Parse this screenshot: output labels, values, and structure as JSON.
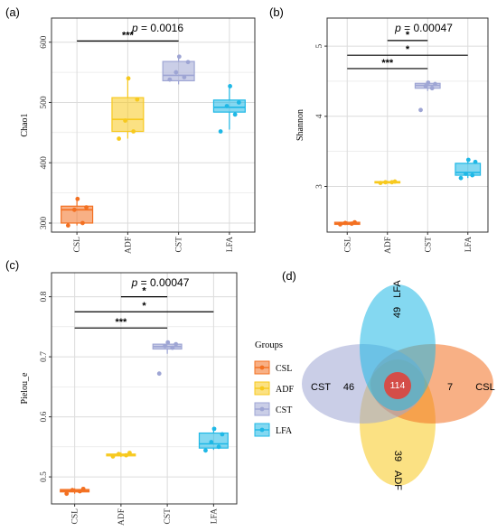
{
  "colors": {
    "CSL": "#f37021",
    "ADF": "#f7c91e",
    "CST": "#9ea5d4",
    "LFA": "#1fb8e6",
    "grid": "#dcdcdc",
    "panel_border": "#333333"
  },
  "chart_data": [
    {
      "panel": "(a)",
      "type": "box",
      "pvalue_prefix": "p",
      "pvalue_text": " = 0.0016",
      "ylabel": "Chao1",
      "categories": [
        "CSL",
        "ADF",
        "CST",
        "LFA"
      ],
      "ylim": [
        285,
        640
      ],
      "yticks": [
        300,
        400,
        500,
        600
      ],
      "boxes": [
        {
          "group": "CSL",
          "min": 296,
          "q1": 300,
          "median": 322,
          "q3": 328,
          "max": 340
        },
        {
          "group": "ADF",
          "min": 440,
          "q1": 452,
          "median": 472,
          "q3": 508,
          "max": 540
        },
        {
          "group": "CST",
          "min": 530,
          "q1": 536,
          "median": 545,
          "q3": 568,
          "max": 578
        },
        {
          "group": "LFA",
          "min": 455,
          "q1": 484,
          "median": 492,
          "q3": 504,
          "max": 528
        }
      ],
      "points": [
        {
          "group": "CSL",
          "values": [
            296,
            300,
            322,
            326,
            340
          ]
        },
        {
          "group": "ADF",
          "values": [
            440,
            452,
            470,
            505,
            540
          ]
        },
        {
          "group": "CST",
          "values": [
            538,
            542,
            550,
            567,
            576
          ]
        },
        {
          "group": "LFA",
          "values": [
            452,
            480,
            494,
            500,
            527
          ]
        }
      ],
      "significance": [
        {
          "from": "CSL",
          "to": "CST",
          "y": 602,
          "label": "***"
        }
      ]
    },
    {
      "panel": "(b)",
      "type": "box",
      "pvalue_prefix": "p",
      "pvalue_text": " = 0.00047",
      "ylabel": "Shannon",
      "categories": [
        "CSL",
        "ADF",
        "CST",
        "LFA"
      ],
      "ylim": [
        2.35,
        5.4
      ],
      "yticks": [
        3,
        4,
        5
      ],
      "boxes": [
        {
          "group": "CSL",
          "min": 2.45,
          "q1": 2.46,
          "median": 2.47,
          "q3": 2.49,
          "max": 2.5
        },
        {
          "group": "ADF",
          "min": 3.04,
          "q1": 3.05,
          "median": 3.06,
          "q3": 3.07,
          "max": 3.08
        },
        {
          "group": "CST",
          "min": 4.36,
          "q1": 4.4,
          "median": 4.44,
          "q3": 4.47,
          "max": 4.49
        },
        {
          "group": "LFA",
          "min": 3.12,
          "q1": 3.16,
          "median": 3.2,
          "q3": 3.33,
          "max": 3.38
        }
      ],
      "points": [
        {
          "group": "CSL",
          "values": [
            2.46,
            2.47,
            2.48,
            2.49
          ]
        },
        {
          "group": "ADF",
          "values": [
            3.05,
            3.06,
            3.06,
            3.07
          ]
        },
        {
          "group": "CST",
          "values": [
            4.09,
            4.4,
            4.43,
            4.46,
            4.48
          ]
        },
        {
          "group": "LFA",
          "values": [
            3.12,
            3.16,
            3.18,
            3.35,
            3.38
          ]
        }
      ],
      "significance": [
        {
          "from": "CSL",
          "to": "CST",
          "y": 4.68,
          "label": "***"
        },
        {
          "from": "CSL",
          "to": "LFA",
          "y": 4.87,
          "label": "*"
        },
        {
          "from": "ADF",
          "to": "CST",
          "y": 5.08,
          "label": "*"
        }
      ]
    },
    {
      "panel": "(c)",
      "type": "box",
      "pvalue_prefix": "p",
      "pvalue_text": " = 0.00047",
      "ylabel": "Pielou_e",
      "categories": [
        "CSL",
        "ADF",
        "CST",
        "LFA"
      ],
      "ylim": [
        0.455,
        0.84
      ],
      "yticks": [
        0.5,
        0.6,
        0.7,
        0.8
      ],
      "boxes": [
        {
          "group": "CSL",
          "min": 0.472,
          "q1": 0.475,
          "median": 0.477,
          "q3": 0.479,
          "max": 0.481
        },
        {
          "group": "ADF",
          "min": 0.533,
          "q1": 0.535,
          "median": 0.537,
          "q3": 0.538,
          "max": 0.541
        },
        {
          "group": "CST",
          "min": 0.705,
          "q1": 0.713,
          "median": 0.717,
          "q3": 0.721,
          "max": 0.724
        },
        {
          "group": "LFA",
          "min": 0.545,
          "q1": 0.548,
          "median": 0.555,
          "q3": 0.573,
          "max": 0.58
        }
      ],
      "points": [
        {
          "group": "CSL",
          "values": [
            0.472,
            0.476,
            0.478,
            0.48
          ]
        },
        {
          "group": "ADF",
          "values": [
            0.534,
            0.536,
            0.538,
            0.54
          ]
        },
        {
          "group": "CST",
          "values": [
            0.672,
            0.715,
            0.718,
            0.721,
            0.724
          ]
        },
        {
          "group": "LFA",
          "values": [
            0.544,
            0.55,
            0.558,
            0.571,
            0.58
          ]
        }
      ],
      "significance": [
        {
          "from": "CSL",
          "to": "CST",
          "y": 0.748,
          "label": "***"
        },
        {
          "from": "CSL",
          "to": "LFA",
          "y": 0.775,
          "label": "*"
        },
        {
          "from": "ADF",
          "to": "CST",
          "y": 0.8,
          "label": "*"
        }
      ]
    },
    {
      "panel": "(d)",
      "type": "venn",
      "sets": [
        {
          "name": "CST",
          "unique": 46
        },
        {
          "name": "LFA",
          "unique": 49
        },
        {
          "name": "CSL",
          "unique": 7
        },
        {
          "name": "ADF",
          "unique": 39
        }
      ],
      "intersection_all": 114
    }
  ],
  "legend": {
    "title": "Groups",
    "items": [
      "CSL",
      "ADF",
      "CST",
      "LFA"
    ]
  }
}
